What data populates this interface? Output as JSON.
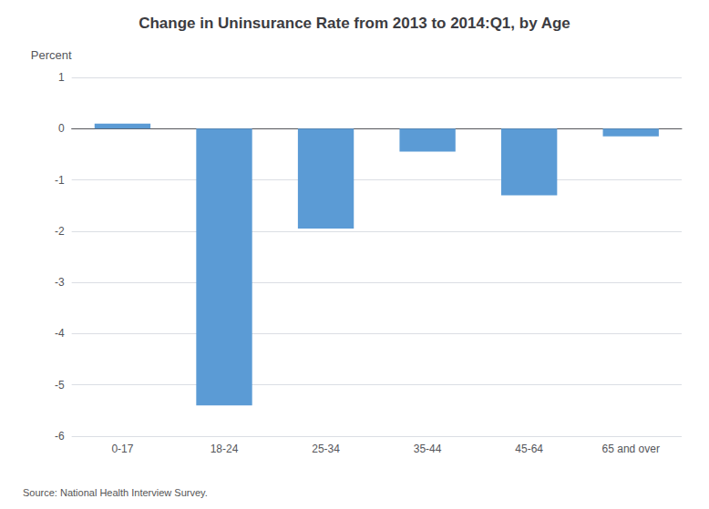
{
  "chart_data": {
    "type": "bar",
    "title": "Change in Uninsurance Rate from 2013 to 2014:Q1, by Age",
    "ylabel": "Percent",
    "source": "Source: National Health Interview Survey.",
    "categories": [
      "0-17",
      "18-24",
      "25-34",
      "35-44",
      "45-64",
      "65 and over"
    ],
    "values": [
      0.1,
      -5.4,
      -1.95,
      -0.45,
      -1.3,
      -0.15
    ],
    "color": "#5b9bd5",
    "ylim": [
      -6,
      1
    ],
    "yticks": [
      -6,
      -5,
      -4,
      -3,
      -2,
      -1,
      0,
      1
    ],
    "grid": true
  }
}
